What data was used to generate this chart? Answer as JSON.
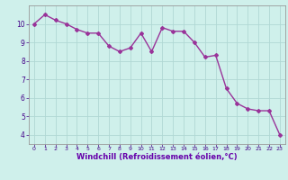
{
  "x": [
    0,
    1,
    2,
    3,
    4,
    5,
    6,
    7,
    8,
    9,
    10,
    11,
    12,
    13,
    14,
    15,
    16,
    17,
    18,
    19,
    20,
    21,
    22,
    23
  ],
  "y": [
    10.0,
    10.5,
    10.2,
    10.0,
    9.7,
    9.5,
    9.5,
    8.8,
    8.5,
    8.7,
    9.5,
    8.5,
    9.8,
    9.6,
    9.6,
    9.0,
    8.2,
    8.3,
    6.5,
    5.7,
    5.4,
    5.3,
    5.3,
    4.0
  ],
  "line_color": "#993399",
  "marker": "D",
  "markersize": 2,
  "linewidth": 1.0,
  "bg_color": "#cff0eb",
  "grid_color": "#b0d8d4",
  "xlabel": "Windchill (Refroidissement éolien,°C)",
  "xlabel_fontsize": 6,
  "yticks": [
    4,
    5,
    6,
    7,
    8,
    9,
    10
  ],
  "xticks": [
    0,
    1,
    2,
    3,
    4,
    5,
    6,
    7,
    8,
    9,
    10,
    11,
    12,
    13,
    14,
    15,
    16,
    17,
    18,
    19,
    20,
    21,
    22,
    23
  ],
  "ylim": [
    3.5,
    11.0
  ],
  "xlim": [
    -0.5,
    23.5
  ],
  "tick_fontsize": 6,
  "xlabel_color": "#6600aa",
  "spine_color": "#999999"
}
